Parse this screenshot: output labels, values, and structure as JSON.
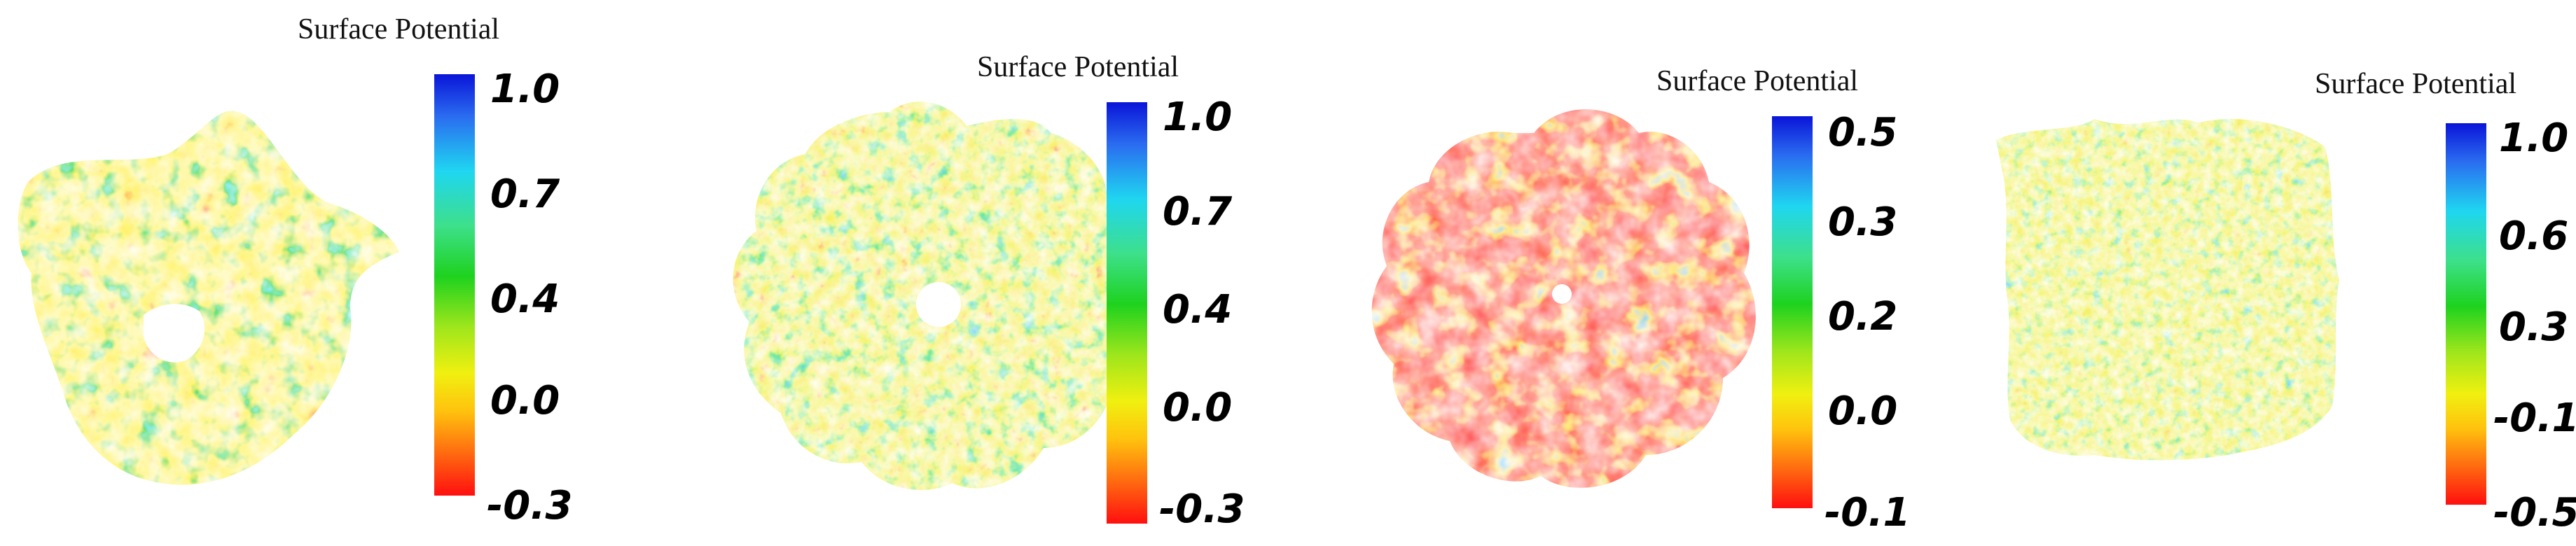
{
  "panels": [
    {
      "id": "panel-1",
      "colorbar": {
        "title": "Surface Potential",
        "ticks": [
          "1.0",
          "0.7",
          "0.4",
          "0.0",
          "-0.3"
        ]
      }
    },
    {
      "id": "panel-2",
      "colorbar": {
        "title": "Surface Potential",
        "ticks": [
          "1.0",
          "0.7",
          "0.4",
          "0.0",
          "-0.3"
        ]
      }
    },
    {
      "id": "panel-3",
      "colorbar": {
        "title": "Surface Potential",
        "ticks": [
          "0.5",
          "0.3",
          "0.2",
          "0.0",
          "-0.1"
        ]
      }
    },
    {
      "id": "panel-4",
      "colorbar": {
        "title": "Surface Potential",
        "ticks": [
          "1.0",
          "0.6",
          "0.3",
          "-0.1",
          "-0.5"
        ]
      }
    }
  ],
  "colors": {
    "max": "#0a14d8",
    "cyan": "#1fd6f0",
    "green": "#1ed21e",
    "yellow": "#f0f010",
    "min": "#ff0f0f"
  }
}
